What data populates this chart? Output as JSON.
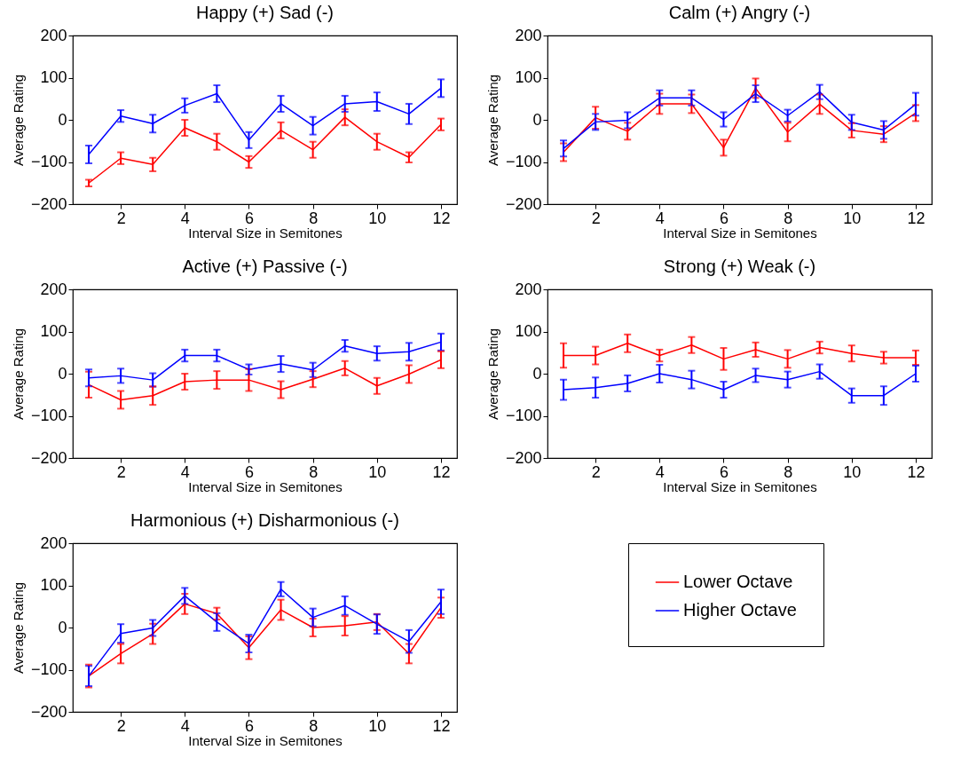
{
  "chart_data": [
    {
      "type": "line",
      "title": "Happy (+) Sad (-)",
      "xlabel": "Interval Size in Semitones",
      "ylabel": "Average Rating",
      "x": [
        1,
        2,
        3,
        4,
        5,
        6,
        7,
        8,
        9,
        10,
        11,
        12
      ],
      "xlim": [
        0.5,
        12.5
      ],
      "xticks": [
        2,
        4,
        6,
        8,
        10,
        12
      ],
      "ylim": [
        -200,
        200
      ],
      "yticks": [
        -200,
        -100,
        0,
        100,
        200
      ],
      "series": [
        {
          "color": "#ff0000",
          "values": [
            -150,
            -91,
            -106,
            -19,
            -52,
            -100,
            -25,
            -71,
            6,
            -52,
            -89,
            -11
          ],
          "errors": [
            8,
            14,
            16,
            19,
            19,
            14,
            19,
            19,
            19,
            19,
            12,
            14
          ]
        },
        {
          "color": "#0000ff",
          "values": [
            -82,
            9,
            -9,
            34,
            62,
            -48,
            38,
            -14,
            38,
            43,
            14,
            75
          ],
          "errors": [
            21,
            14,
            21,
            17,
            20,
            19,
            19,
            21,
            19,
            22,
            24,
            21
          ]
        }
      ]
    },
    {
      "type": "line",
      "title": "Calm (+) Angry (-)",
      "xlabel": "Interval Size in Semitones",
      "ylabel": "Average Rating",
      "x": [
        1,
        2,
        3,
        4,
        5,
        6,
        7,
        8,
        9,
        10,
        11,
        12
      ],
      "xlim": [
        0.5,
        12.5
      ],
      "xticks": [
        2,
        4,
        6,
        8,
        10,
        12
      ],
      "ylim": [
        -200,
        200
      ],
      "yticks": [
        -200,
        -100,
        0,
        100,
        200
      ],
      "series": [
        {
          "color": "#ff0000",
          "values": [
            -77,
            5,
            -27,
            38,
            38,
            -66,
            75,
            -29,
            37,
            -25,
            -34,
            16
          ],
          "errors": [
            21,
            26,
            20,
            24,
            22,
            19,
            23,
            22,
            23,
            17,
            19,
            19
          ]
        },
        {
          "color": "#0000ff",
          "values": [
            -68,
            -5,
            -1,
            52,
            52,
            1,
            62,
            10,
            66,
            -6,
            -24,
            37
          ],
          "errors": [
            19,
            19,
            19,
            18,
            18,
            17,
            20,
            14,
            17,
            18,
            21,
            27
          ]
        }
      ]
    },
    {
      "type": "line",
      "title": "Active (+) Passive (-)",
      "xlabel": "Interval Size in Semitones",
      "ylabel": "Average Rating",
      "x": [
        1,
        2,
        3,
        4,
        5,
        6,
        7,
        8,
        9,
        10,
        11,
        12
      ],
      "xlim": [
        0.5,
        12.5
      ],
      "xticks": [
        2,
        4,
        6,
        8,
        10,
        12
      ],
      "ylim": [
        -200,
        200
      ],
      "yticks": [
        -200,
        -100,
        0,
        100,
        200
      ],
      "series": [
        {
          "color": "#ff0000",
          "values": [
            -26,
            -62,
            -52,
            -19,
            -15,
            -15,
            -38,
            -13,
            13,
            -29,
            -1,
            33
          ],
          "errors": [
            31,
            21,
            22,
            19,
            21,
            26,
            20,
            19,
            17,
            19,
            21,
            20
          ]
        },
        {
          "color": "#0000ff",
          "values": [
            -10,
            -5,
            -15,
            43,
            43,
            10,
            23,
            9,
            66,
            48,
            52,
            75
          ],
          "errors": [
            20,
            17,
            16,
            14,
            14,
            12,
            19,
            17,
            14,
            17,
            21,
            20
          ]
        }
      ]
    },
    {
      "type": "line",
      "title": "Strong (+) Weak (-)",
      "xlabel": "Interval Size in Semitones",
      "ylabel": "Average Rating",
      "x": [
        1,
        2,
        3,
        4,
        5,
        6,
        7,
        8,
        9,
        10,
        11,
        12
      ],
      "xlim": [
        0.5,
        12.5
      ],
      "xticks": [
        2,
        4,
        6,
        8,
        10,
        12
      ],
      "ylim": [
        -200,
        200
      ],
      "yticks": [
        -200,
        -100,
        0,
        100,
        200
      ],
      "series": [
        {
          "color": "#ff0000",
          "values": [
            43,
            43,
            72,
            43,
            68,
            35,
            57,
            35,
            62,
            48,
            38,
            38
          ],
          "errors": [
            29,
            21,
            21,
            14,
            19,
            26,
            17,
            21,
            14,
            19,
            14,
            17
          ]
        },
        {
          "color": "#0000ff",
          "values": [
            -38,
            -33,
            -23,
            0,
            -14,
            -38,
            -4,
            -14,
            5,
            -52,
            -52,
            0
          ],
          "errors": [
            24,
            24,
            19,
            21,
            21,
            19,
            16,
            19,
            17,
            17,
            22,
            19
          ]
        }
      ]
    },
    {
      "type": "line",
      "title": "Harmonious (+) Disharmonious (-)",
      "xlabel": "Interval Size in Semitones",
      "ylabel": "Average Rating",
      "x": [
        1,
        2,
        3,
        4,
        5,
        6,
        7,
        8,
        9,
        10,
        11,
        12
      ],
      "xlim": [
        0.5,
        12.5
      ],
      "xticks": [
        2,
        4,
        6,
        8,
        10,
        12
      ],
      "ylim": [
        -200,
        200
      ],
      "yticks": [
        -200,
        -100,
        0,
        100,
        200
      ],
      "legend": "right",
      "series": [
        {
          "name": "Lower Octave",
          "color": "#ff0000",
          "values": [
            -115,
            -62,
            -15,
            56,
            33,
            -48,
            42,
            0,
            4,
            13,
            -62,
            47
          ],
          "errors": [
            27,
            23,
            24,
            24,
            14,
            27,
            24,
            21,
            23,
            19,
            23,
            24
          ]
        },
        {
          "name": "Higher Octave",
          "color": "#0000ff",
          "values": [
            -115,
            -14,
            -1,
            75,
            13,
            -38,
            91,
            24,
            52,
            8,
            -33,
            61
          ],
          "errors": [
            24,
            22,
            19,
            19,
            21,
            21,
            17,
            21,
            22,
            23,
            27,
            29
          ]
        }
      ]
    }
  ]
}
